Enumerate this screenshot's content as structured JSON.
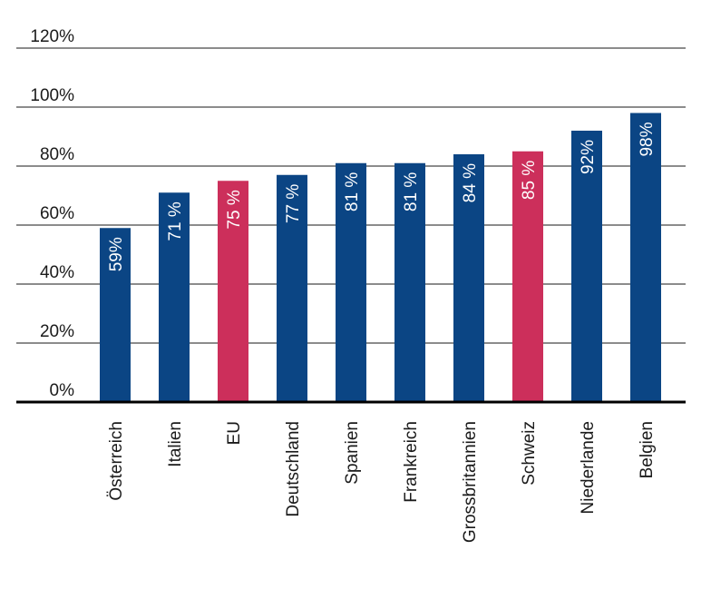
{
  "chart_data": {
    "type": "bar",
    "title": "",
    "xlabel": "",
    "ylabel": "",
    "categories": [
      "Österreich",
      "Italien",
      "EU",
      "Deutschland",
      "Spanien",
      "Frankreich",
      "Grossbritannien",
      "Schweiz",
      "Niederlande",
      "Belgien"
    ],
    "values": [
      59,
      71,
      75,
      77,
      81,
      81,
      84,
      85,
      92,
      98
    ],
    "data_labels": [
      "59%",
      "71 %",
      "75 %",
      "77 %",
      "81 %",
      "81 %",
      "84 %",
      "85 %",
      "92%",
      "98%"
    ],
    "highlight": [
      false,
      false,
      true,
      false,
      false,
      false,
      false,
      true,
      false,
      false
    ],
    "ylim": [
      0,
      120
    ],
    "yticks": [
      0,
      20,
      40,
      60,
      80,
      100,
      120
    ],
    "ytick_labels": [
      "0%",
      "20%",
      "40%",
      "60%",
      "80%",
      "100%",
      "120%"
    ],
    "grid": true,
    "colors": {
      "default": "#0b4584",
      "highlight": "#cc2f5b",
      "grid": "#1a1a1a",
      "axis": "#000000"
    }
  }
}
